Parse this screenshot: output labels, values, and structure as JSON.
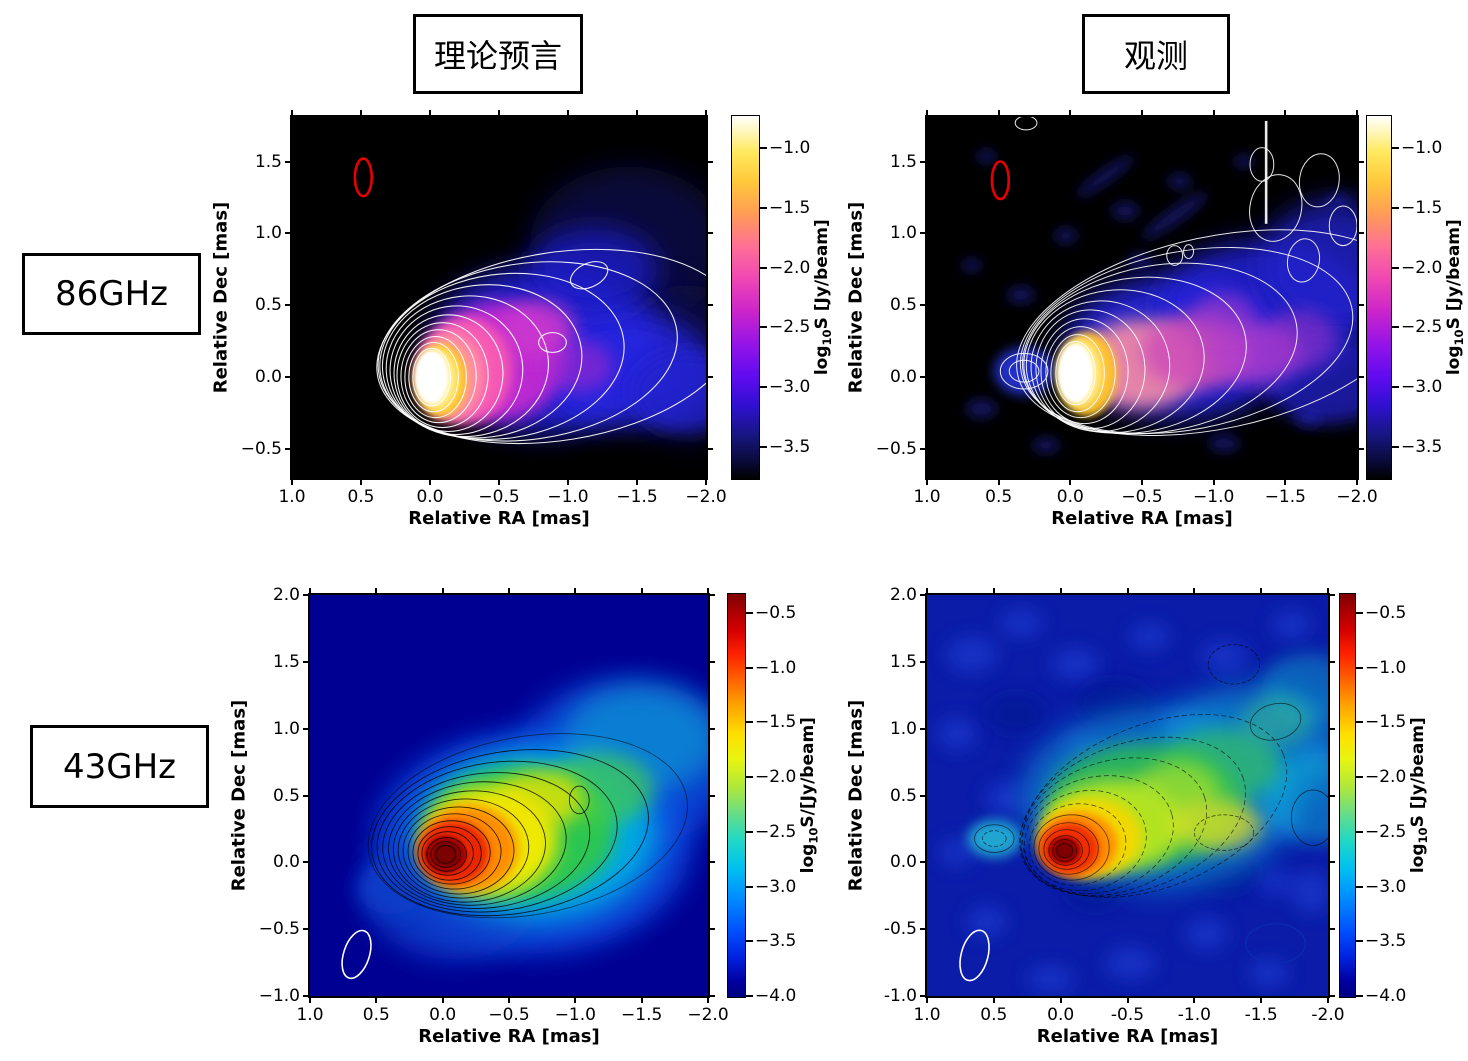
{
  "header": {
    "theory": "理论预言",
    "observation": "观测"
  },
  "rows": {
    "freq_86": "86GHz",
    "freq_43": "43GHz"
  },
  "axis": {
    "x": "Relative RA [mas]",
    "y": "Relative Dec [mas]"
  },
  "ticks": {
    "x_minus": [
      "1.0",
      "0.5",
      "0.0",
      "−0.5",
      "−1.0",
      "−1.5",
      "−2.0"
    ],
    "x_hyphen": [
      "1.0",
      "0.5",
      "0.0",
      "-0.5",
      "-1.0",
      "-1.5",
      "-2.0"
    ],
    "y_top": [
      "1.5",
      "1.0",
      "0.5",
      "0.0",
      "−0.5"
    ],
    "y_bot_minus": [
      "2.0",
      "1.5",
      "1.0",
      "0.5",
      "0.0",
      "−0.5",
      "−1.0"
    ],
    "y_bot_hyphen": [
      "2.0",
      "1.5",
      "1.0",
      "0.5",
      "0.0",
      "-0.5",
      "-1.0"
    ],
    "cbar_86": [
      "−1.0",
      "−1.5",
      "−2.0",
      "−2.5",
      "−3.0",
      "−3.5"
    ],
    "cbar_43": [
      "−0.5",
      "−1.0",
      "−1.5",
      "−2.0",
      "−2.5",
      "−3.0",
      "−3.5",
      "−4.0"
    ]
  },
  "colorbar": {
    "label_86": {
      "prefix": "log",
      "sub": "10",
      "rest": "S [Jy/beam]"
    },
    "label_43_theory": {
      "prefix": "log",
      "sub": "10",
      "rest": "S/[Jy/beam]"
    },
    "label_43_obs": {
      "prefix": "log",
      "sub": "10",
      "rest": "S [Jy/beam]"
    }
  },
  "colors": {
    "beam_86": "#ee0000",
    "beam_43": "#ffffff",
    "background_86": "#000000",
    "background_43": "#000092",
    "contour_86": "#ffffff",
    "contour_43": "#000000",
    "colormap_86": [
      "#000000",
      "#1a1a80",
      "#5f0bf0",
      "#cb24cb",
      "#ff6f96",
      "#ffc93a",
      "#ffffff"
    ],
    "colormap_43": [
      "#000080",
      "#0024e0",
      "#00c0f0",
      "#62dc8c",
      "#ffe000",
      "#ff2200",
      "#7e0000"
    ]
  },
  "chart_data": [
    {
      "type": "heatmap",
      "panel": "top-left",
      "title": "86GHz 理论预言 (theoretical prediction)",
      "xlabel": "Relative RA [mas]",
      "ylabel": "Relative Dec [mas]",
      "xlim": [
        1.0,
        -2.0
      ],
      "ylim": [
        -0.7,
        1.81
      ],
      "x_ticks": [
        1.0,
        0.5,
        0.0,
        -0.5,
        -1.0,
        -1.5,
        -2.0
      ],
      "y_ticks": [
        1.5,
        1.0,
        0.5,
        0.0,
        -0.5
      ],
      "grid": false,
      "colorbar": {
        "label": "log10S [Jy/beam]",
        "ticks": [
          -1.0,
          -1.5,
          -2.0,
          -2.5,
          -3.0,
          -3.5
        ],
        "range_top_to_bottom": [
          -0.72,
          -3.78
        ],
        "colormap": "black-blue-magenta-pink-yellow-white"
      },
      "features": {
        "background": "black (below noise floor)",
        "core": {
          "ra_mas": 0.0,
          "dec_mas": 0.0,
          "peak_log10S": -0.8,
          "appearance": "saturated white ellipse"
        },
        "jet": "smooth one-sided jet from core toward negative RA out to -2.0 mas, between Dec -0.4 and +1.0; pink/magenta inner sheath, blue outer sheath",
        "contours": "smooth white contours nested around core and jet",
        "beam_ellipse": {
          "ra_mas": 0.5,
          "dec_mas": 1.4,
          "color": "#ee0000"
        }
      }
    },
    {
      "type": "heatmap",
      "panel": "top-right",
      "title": "86GHz 观测 (observation)",
      "xlabel": "Relative RA [mas]",
      "ylabel": "Relative Dec [mas]",
      "xlim": [
        1.0,
        -2.0
      ],
      "ylim": [
        -0.7,
        1.81
      ],
      "x_ticks": [
        1.0,
        0.5,
        0.0,
        -0.5,
        -1.0,
        -1.5,
        -2.0
      ],
      "y_ticks": [
        1.5,
        1.0,
        0.5,
        0.0,
        -0.5
      ],
      "grid": false,
      "colorbar": {
        "label": "log10S [Jy/beam]",
        "ticks": [
          -1.0,
          -1.5,
          -2.0,
          -2.5,
          -3.0,
          -3.5
        ],
        "range_top_to_bottom": [
          -0.72,
          -3.78
        ],
        "colormap": "black-blue-magenta-pink-yellow-white"
      },
      "features": {
        "background": "black with faint blue noise blobs and diagonal streaks",
        "core": {
          "ra_mas": 0.0,
          "dec_mas": 0.0,
          "peak_log10S": -0.8,
          "appearance": "saturated white ellipse"
        },
        "jet": "ragged jet toward negative RA reaching panel edge at -2.0 mas, widening upward to Dec ~1.5; salmon/purple ridge, blue clumpy envelope, bright vertical spike near RA -1.35",
        "contours": "dense wiggly white contours over jet and noise peaks",
        "beam_ellipse": {
          "ra_mas": 0.5,
          "dec_mas": 1.4,
          "color": "#ee0000"
        }
      }
    },
    {
      "type": "heatmap",
      "panel": "bottom-left",
      "title": "43GHz 理论预言 (theoretical prediction)",
      "xlabel": "Relative RA [mas]",
      "ylabel": "Relative Dec [mas]",
      "xlim": [
        1.0,
        -2.0
      ],
      "ylim": [
        -1.0,
        2.0
      ],
      "x_ticks": [
        1.0,
        0.5,
        0.0,
        -0.5,
        -1.0,
        -1.5,
        -2.0
      ],
      "y_ticks": [
        2.0,
        1.5,
        1.0,
        0.5,
        0.0,
        -0.5,
        -1.0
      ],
      "grid": false,
      "colorbar": {
        "label": "log10S/[Jy/beam]",
        "ticks": [
          -0.5,
          -1.0,
          -1.5,
          -2.0,
          -2.5,
          -3.0,
          -3.5,
          -4.0
        ],
        "range_top_to_bottom": [
          -0.3,
          -4.0
        ],
        "colormap": "jet (dark blue - cyan - green - yellow - red - dark red)"
      },
      "features": {
        "background": "uniform dark blue (~ -4)",
        "core": {
          "ra_mas": -0.05,
          "dec_mas": 0.0,
          "peak_log10S": -0.4,
          "appearance": "dark-red peak"
        },
        "jet": "smooth conical jet toward negative RA, opening upward to Dec ~1.0, green/cyan outskirts fading toward -2.0 mas; faint blue blob at RA ~0.4, Dec ~-0.25",
        "contours": "thin black nested contours around core and jet",
        "beam_ellipse": {
          "ra_mas": 0.65,
          "dec_mas": -0.7,
          "color": "#ffffff"
        }
      }
    },
    {
      "type": "heatmap",
      "panel": "bottom-right",
      "title": "43GHz 观测 (observation)",
      "xlabel": "Relative RA [mas]",
      "ylabel": "Relative Dec [mas]",
      "xlim": [
        1.0,
        -2.0
      ],
      "ylim": [
        -1.0,
        2.0
      ],
      "x_ticks": [
        1.0,
        0.5,
        0.0,
        -0.5,
        -1.0,
        -1.5,
        -2.0
      ],
      "y_ticks": [
        2.0,
        1.5,
        1.0,
        0.5,
        0.0,
        -0.5,
        -1.0
      ],
      "grid": false,
      "colorbar": {
        "label": "log10S [Jy/beam]",
        "ticks": [
          -0.5,
          -1.0,
          -1.5,
          -2.0,
          -2.5,
          -3.0,
          -3.5,
          -4.0
        ],
        "range_top_to_bottom": [
          -0.3,
          -4.0
        ],
        "colormap": "jet (dark blue - cyan - green - yellow - red - dark red)"
      },
      "features": {
        "background": "mottled blue noise",
        "core": {
          "ra_mas": 0.0,
          "dec_mas": 0.0,
          "peak_log10S": -0.4,
          "appearance": "dark-red compact peak"
        },
        "jet": "knotty jet toward negative RA climbing to Dec ~1.0-1.5, green/yellow knots with cyan envelope; cyan counter-feature at RA ~0.5",
        "contours": "thin black solid and dashed contours over knots",
        "beam_ellipse": {
          "ra_mas": 0.65,
          "dec_mas": -0.7,
          "color": "#ffffff"
        }
      }
    }
  ]
}
